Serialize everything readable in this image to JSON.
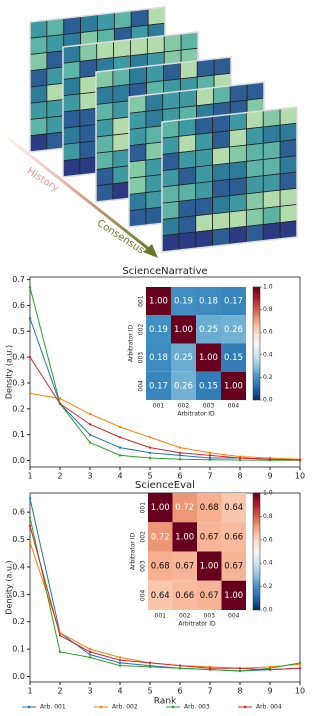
{
  "illustration": {
    "labels": [
      "History",
      "Consensus"
    ]
  },
  "chart_data": [
    {
      "type": "line",
      "title": "ScienceNarrative",
      "ylabel": "Density (a.u.)",
      "x": [
        1,
        2,
        3,
        4,
        5,
        6,
        7,
        8,
        9,
        10
      ],
      "xlim": [
        1,
        10
      ],
      "xticks": [
        1,
        2,
        3,
        4,
        5,
        6,
        7,
        8,
        9,
        10
      ],
      "ylim": [
        -0.025,
        0.71
      ],
      "yticks": [
        {
          "value": 0,
          "label": "0.0"
        },
        0.1,
        0.2,
        0.3,
        0.4,
        0.5,
        0.6,
        0.7
      ],
      "series": [
        {
          "name": "Arb. 001",
          "color": "#1f77b4",
          "values": [
            0.55,
            0.22,
            0.1,
            0.05,
            0.03,
            0.02,
            0.01,
            0.01,
            0.005,
            0.003
          ]
        },
        {
          "name": "Arb. 002",
          "color": "#ff7f0e",
          "values": [
            0.26,
            0.24,
            0.18,
            0.13,
            0.09,
            0.05,
            0.03,
            0.015,
            0.01,
            0.005
          ]
        },
        {
          "name": "Arb. 003",
          "color": "#2ca02c",
          "values": [
            0.67,
            0.22,
            0.07,
            0.02,
            0.01,
            0.005,
            0.003,
            0.002,
            0.001,
            0.001
          ]
        },
        {
          "name": "Arb. 004",
          "color": "#d62728",
          "values": [
            0.4,
            0.22,
            0.14,
            0.09,
            0.05,
            0.03,
            0.02,
            0.01,
            0.005,
            0.002
          ]
        }
      ],
      "heatmap": {
        "categories": [
          "001",
          "002",
          "003",
          "004"
        ],
        "xlabel": "Arbitrator ID",
        "ylabel": "Arbitrator ID",
        "values": [
          [
            1,
            0.19,
            0.18,
            0.17
          ],
          [
            0.19,
            1,
            0.25,
            0.26
          ],
          [
            0.18,
            0.25,
            1,
            0.15
          ],
          [
            0.17,
            0.26,
            0.15,
            1
          ]
        ],
        "value_labels": [
          [
            "1.00",
            "0.19",
            "0.18",
            "0.17"
          ],
          [
            "0.19",
            "1.00",
            "0.25",
            "0.26"
          ],
          [
            "0.18",
            "0.25",
            "1.00",
            "0.15"
          ],
          [
            "0.17",
            "0.26",
            "0.15",
            "1.00"
          ]
        ],
        "clim": [
          0,
          1
        ],
        "cticks": [
          {
            "value": 0,
            "label": "0.0"
          },
          0.2,
          0.4,
          0.6,
          0.8,
          {
            "value": 1,
            "label": "1.0"
          }
        ]
      }
    },
    {
      "type": "line",
      "title": "ScienceEval",
      "ylabel": "Density (a.u.)",
      "xlabel": "Rank",
      "x": [
        1,
        2,
        3,
        4,
        5,
        6,
        7,
        8,
        9,
        10
      ],
      "xlim": [
        1,
        10
      ],
      "xticks": [
        1,
        2,
        3,
        4,
        5,
        6,
        7,
        8,
        9,
        10
      ],
      "ylim": [
        -0.02,
        0.67
      ],
      "yticks": [
        {
          "value": 0,
          "label": "0.0"
        },
        0.1,
        0.2,
        0.3,
        0.4,
        0.5,
        0.6
      ],
      "series": [
        {
          "color": "#1f77b4",
          "values": [
            0.65,
            0.16,
            0.08,
            0.05,
            0.04,
            0.03,
            0.025,
            0.02,
            0.025,
            0.03
          ]
        },
        {
          "color": "#ff7f0e",
          "values": [
            0.49,
            0.16,
            0.1,
            0.07,
            0.05,
            0.04,
            0.035,
            0.03,
            0.035,
            0.045
          ]
        },
        {
          "color": "#2ca02c",
          "values": [
            0.58,
            0.09,
            0.07,
            0.04,
            0.035,
            0.03,
            0.025,
            0.02,
            0.03,
            0.05
          ]
        },
        {
          "color": "#d62728",
          "values": [
            0.55,
            0.15,
            0.09,
            0.06,
            0.05,
            0.04,
            0.03,
            0.03,
            0.025,
            0.03
          ]
        }
      ],
      "heatmap": {
        "categories": [
          "001",
          "002",
          "003",
          "004"
        ],
        "xlabel": "Arbitrator ID",
        "ylabel": "Arbitrator ID",
        "values": [
          [
            1,
            0.72,
            0.68,
            0.64
          ],
          [
            0.72,
            1,
            0.67,
            0.66
          ],
          [
            0.68,
            0.67,
            1,
            0.67
          ],
          [
            0.64,
            0.66,
            0.67,
            1
          ]
        ],
        "value_labels": [
          [
            "1.00",
            "0.72",
            "0.68",
            "0.64"
          ],
          [
            "0.72",
            "1.00",
            "0.67",
            "0.66"
          ],
          [
            "0.68",
            "0.67",
            "1.00",
            "0.67"
          ],
          [
            "0.64",
            "0.66",
            "0.67",
            "1.00"
          ]
        ],
        "clim": [
          0,
          1
        ],
        "cticks": [
          {
            "value": 0,
            "label": "0.0"
          },
          0.2,
          0.4,
          0.6,
          0.8,
          {
            "value": 1,
            "label": "1.0"
          }
        ]
      }
    }
  ]
}
